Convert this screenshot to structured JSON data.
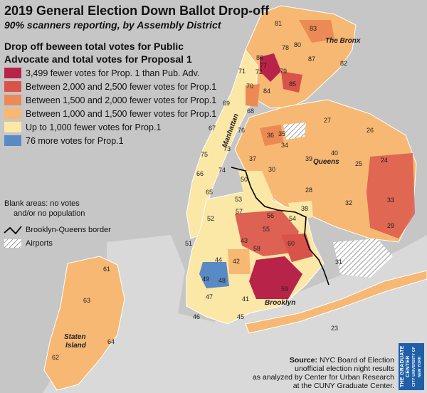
{
  "title": "2019 General Election Down Ballot Drop-off",
  "subtitle": "90% scanners reporting, by Assembly District",
  "legend": {
    "title": "Drop off beween total votes for Public Advocate and total votes for Proposal 1",
    "items": [
      {
        "label": "3,499 fewer votes for Prop. 1 than Pub. Adv.",
        "color": "#b8234a"
      },
      {
        "label": "Between 2,000 and 2,500 fewer votes for Prop.1",
        "color": "#d9534a"
      },
      {
        "label": "Between 1,500 and 2,000 fewer votes for Prop.1",
        "color": "#ec8a55"
      },
      {
        "label": "Between 1,000 and 1,500 fewer votes for Prop.1",
        "color": "#f7b873"
      },
      {
        "label": "Up to 1,000 fewer votes for Prop.1",
        "color": "#fbe7a6"
      },
      {
        "label": "76 more votes for Prop.1",
        "color": "#5a8ac6"
      }
    ]
  },
  "notes": {
    "blank_line1": "Blank areas: no votes",
    "blank_line2": "and/or no population",
    "border": "Brooklyn-Queens border",
    "airports": "Airports"
  },
  "boroughs": {
    "bronx": "The Bronx",
    "manhattan": "Manhattan",
    "queens": "Queens",
    "brooklyn": "Brooklyn",
    "staten_line1": "Staten",
    "staten_line2": "Island"
  },
  "source": {
    "label": "Source:",
    "line1": "NYC Board of Election",
    "line2": "unofficial election night results",
    "line3": "as analyzed by Center for Urban Research",
    "line4": "at the CUNY Graduate Center."
  },
  "logo": {
    "line1": "THE GRADUATE CENTER",
    "line2": "CITY UNIVERSITY OF NEW YORK"
  },
  "districts": [
    {
      "id": "81",
      "cat": 3
    },
    {
      "id": "83",
      "cat": 2
    },
    {
      "id": "80",
      "cat": 3
    },
    {
      "id": "78",
      "cat": 3
    },
    {
      "id": "82",
      "cat": 3
    },
    {
      "id": "86",
      "cat": 0
    },
    {
      "id": "77",
      "cat": 0
    },
    {
      "id": "87",
      "cat": 2
    },
    {
      "id": "72",
      "cat": 3
    },
    {
      "id": "79",
      "cat": 1
    },
    {
      "id": "71",
      "cat": 2
    },
    {
      "id": "85",
      "cat": 1
    },
    {
      "id": "70",
      "cat": 2
    },
    {
      "id": "84",
      "cat": 2
    },
    {
      "id": "69",
      "cat": 3
    },
    {
      "id": "68",
      "cat": 3
    },
    {
      "id": "67",
      "cat": 3
    },
    {
      "id": "76",
      "cat": 4
    },
    {
      "id": "75",
      "cat": 4
    },
    {
      "id": "73",
      "cat": 4
    },
    {
      "id": "74",
      "cat": 4
    },
    {
      "id": "66",
      "cat": 4
    },
    {
      "id": "65",
      "cat": 4
    },
    {
      "id": "35",
      "cat": 3
    },
    {
      "id": "27",
      "cat": 3
    },
    {
      "id": "26",
      "cat": 3
    },
    {
      "id": "36",
      "cat": 2
    },
    {
      "id": "34",
      "cat": 3
    },
    {
      "id": "39",
      "cat": 3
    },
    {
      "id": "40",
      "cat": 3
    },
    {
      "id": "25",
      "cat": 3
    },
    {
      "id": "24",
      "cat": 3
    },
    {
      "id": "30",
      "cat": 3
    },
    {
      "id": "37",
      "cat": 3
    },
    {
      "id": "50",
      "cat": 4
    },
    {
      "id": "28",
      "cat": 3
    },
    {
      "id": "32",
      "cat": 2
    },
    {
      "id": "33",
      "cat": 2
    },
    {
      "id": "29",
      "cat": 2
    },
    {
      "id": "38",
      "cat": 4
    },
    {
      "id": "53",
      "cat": 3
    },
    {
      "id": "56",
      "cat": 2
    },
    {
      "id": "57",
      "cat": 3
    },
    {
      "id": "54",
      "cat": 2
    },
    {
      "id": "52",
      "cat": 4
    },
    {
      "id": "55",
      "cat": 2
    },
    {
      "id": "43",
      "cat": 2
    },
    {
      "id": "60",
      "cat": 2
    },
    {
      "id": "51",
      "cat": 4
    },
    {
      "id": "58",
      "cat": 2
    },
    {
      "id": "44",
      "cat": 4
    },
    {
      "id": "42",
      "cat": 3
    },
    {
      "id": "48",
      "cat": 5
    },
    {
      "id": "49",
      "cat": 4
    },
    {
      "id": "59",
      "cat": 0
    },
    {
      "id": "47",
      "cat": 4
    },
    {
      "id": "41",
      "cat": 3
    },
    {
      "id": "46",
      "cat": 3
    },
    {
      "id": "45",
      "cat": 4
    },
    {
      "id": "31",
      "cat": 3
    },
    {
      "id": "23",
      "cat": 3
    },
    {
      "id": "61",
      "cat": 3
    },
    {
      "id": "63",
      "cat": 3
    },
    {
      "id": "62",
      "cat": 3
    },
    {
      "id": "64",
      "cat": 3
    }
  ]
}
